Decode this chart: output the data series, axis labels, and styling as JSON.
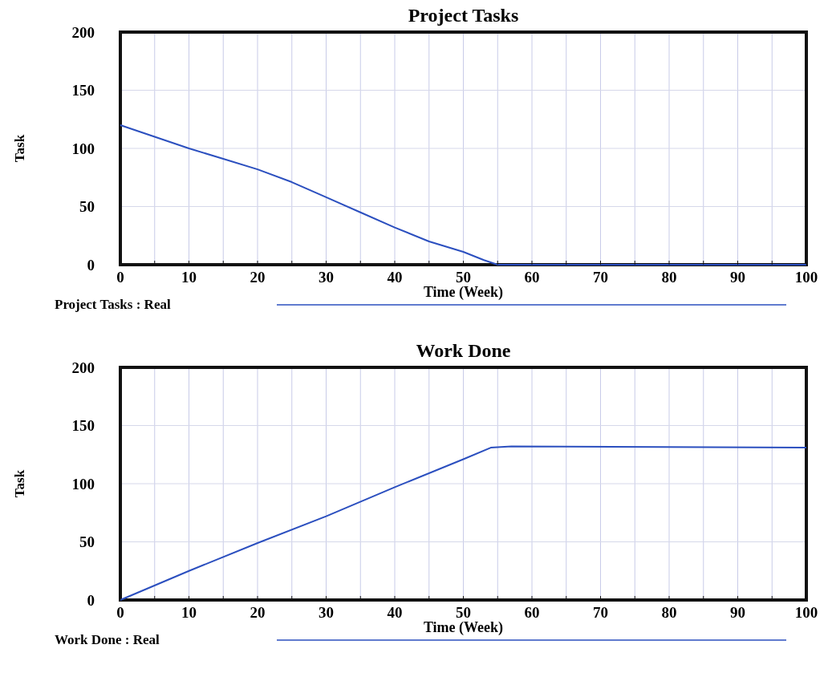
{
  "chart_data": [
    {
      "type": "line",
      "title": "Project Tasks",
      "xlabel": "Time (Week)",
      "ylabel": "Task",
      "series": [
        {
          "name": "Project Tasks : Real",
          "color": "#2b4fbf",
          "x": [
            0,
            5,
            10,
            15,
            20,
            25,
            30,
            35,
            40,
            45,
            50,
            53,
            55,
            100
          ],
          "values": [
            120,
            110,
            100,
            91,
            82,
            71,
            58,
            45,
            32,
            20,
            11,
            4,
            0,
            0
          ]
        }
      ],
      "xlim": [
        0,
        100
      ],
      "ylim": [
        0,
        200
      ],
      "xticks": [
        0,
        {
          "value": 5,
          "label": null
        },
        10,
        {
          "value": 15,
          "label": null
        },
        20,
        {
          "value": 25,
          "label": null
        },
        30,
        {
          "value": 35,
          "label": null
        },
        40,
        {
          "value": 45,
          "label": null
        },
        50,
        {
          "value": 55,
          "label": null
        },
        60,
        {
          "value": 65,
          "label": null
        },
        70,
        {
          "value": 75,
          "label": null
        },
        80,
        {
          "value": 85,
          "label": null
        },
        90,
        {
          "value": 95,
          "label": null
        },
        100
      ],
      "yticks": [
        0,
        50,
        100,
        150,
        200
      ],
      "grid": true,
      "legend": "bottom"
    },
    {
      "type": "line",
      "title": "Work Done",
      "xlabel": "Time (Week)",
      "ylabel": "Task",
      "series": [
        {
          "name": "Work Done : Real",
          "color": "#2b4fbf",
          "x": [
            0,
            10,
            20,
            30,
            40,
            50,
            54,
            57,
            100
          ],
          "values": [
            0,
            25,
            49,
            72,
            97,
            121,
            131,
            132,
            131
          ]
        }
      ],
      "xlim": [
        0,
        100
      ],
      "ylim": [
        0,
        200
      ],
      "xticks": [
        0,
        {
          "value": 5,
          "label": null
        },
        10,
        {
          "value": 15,
          "label": null
        },
        20,
        {
          "value": 25,
          "label": null
        },
        30,
        {
          "value": 35,
          "label": null
        },
        40,
        {
          "value": 45,
          "label": null
        },
        50,
        {
          "value": 55,
          "label": null
        },
        60,
        {
          "value": 65,
          "label": null
        },
        70,
        {
          "value": 75,
          "label": null
        },
        80,
        {
          "value": 85,
          "label": null
        },
        90,
        {
          "value": 95,
          "label": null
        },
        100
      ],
      "yticks": [
        0,
        50,
        100,
        150,
        200
      ],
      "grid": true,
      "legend": "bottom"
    }
  ]
}
